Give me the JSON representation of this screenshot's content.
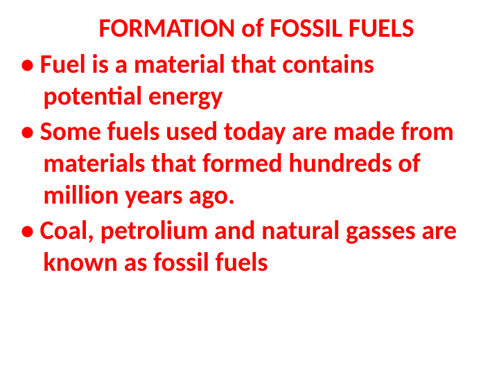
{
  "slide": {
    "title": "FORMATION of FOSSIL FUELS",
    "bullets": [
      "Fuel is a material that contains potential energy",
      "Some fuels used today are made from materials that formed hundreds of million years ago.",
      "Coal, petrolium and natural gasses are known as fossil fuels"
    ],
    "colors": {
      "text": "#ff0000",
      "background": "#ffffff"
    },
    "typography": {
      "title_fontsize": 38,
      "body_fontsize": 38,
      "font_weight": "bold",
      "font_family": "Calibri"
    }
  }
}
